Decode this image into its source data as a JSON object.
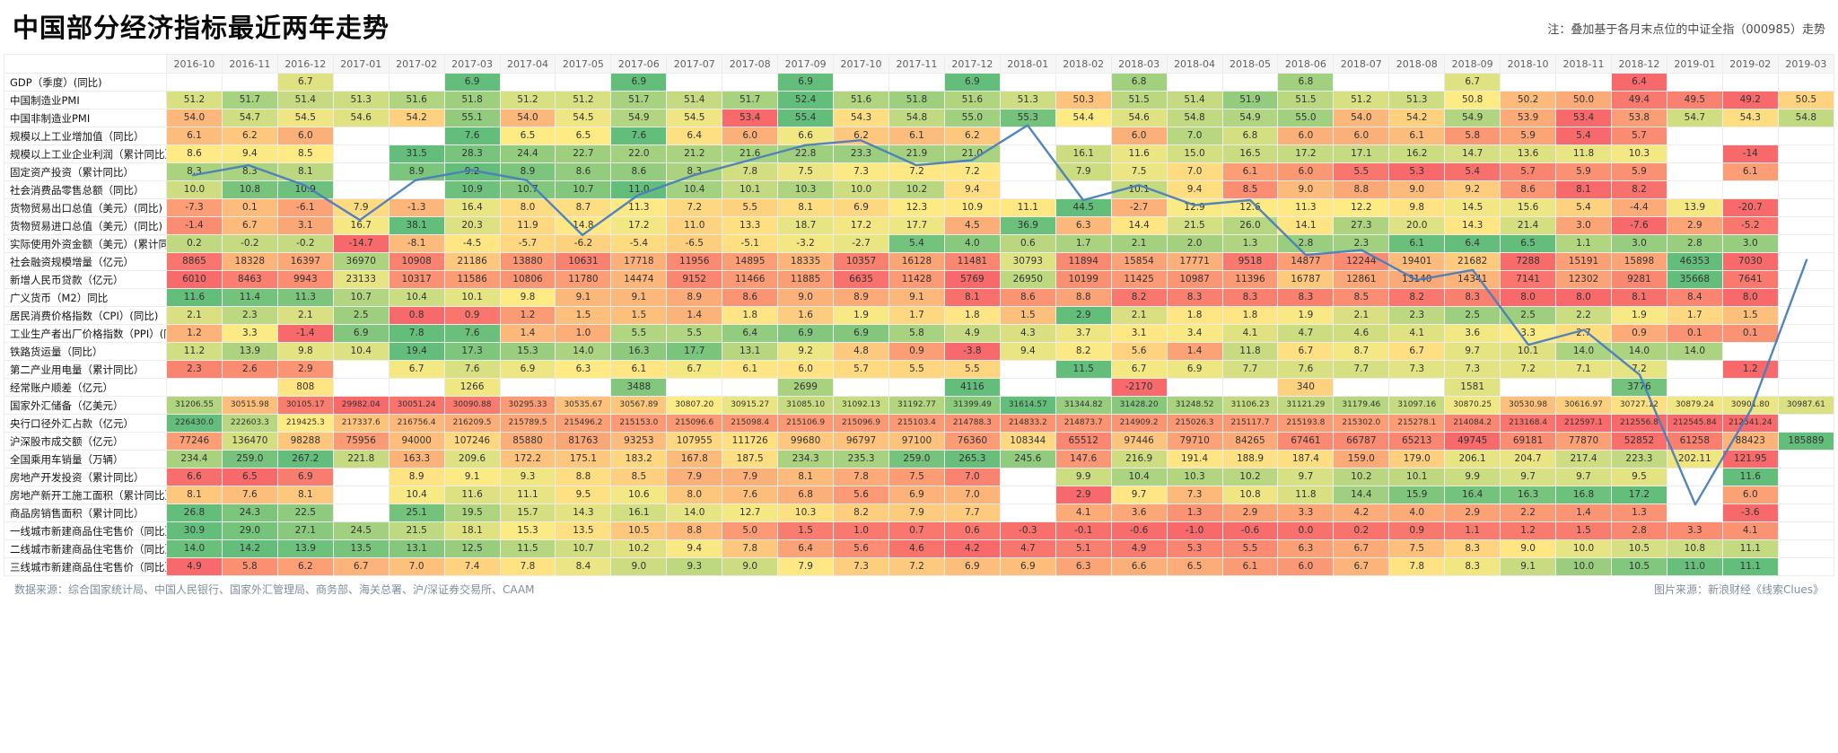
{
  "title": "中国部分经济指标最近两年走势",
  "note": "注：叠加基于各月末点位的中证全指（000985）走势",
  "footer": {
    "source_left": "数据来源：综合国家统计局、中国人民银行、国家外汇管理局、商务部、海关总署、沪/深证券交易所、CAAM",
    "source_right": "图片来源：新浪财经《线索Clues》"
  },
  "colors": {
    "scale_low": "#f8696b",
    "scale_mid": "#ffeb84",
    "scale_high": "#63be7b",
    "index_line": "#4a7ebb",
    "empty_cell": "#ffffff"
  },
  "chart_data": {
    "type": "heatmap",
    "title": "中国部分经济指标最近两年走势",
    "legend_note": "叠加基于各月末点位的中证全指（000985）走势",
    "columns": [
      "2016-10",
      "2016-11",
      "2016-12",
      "2017-01",
      "2017-02",
      "2017-03",
      "2017-04",
      "2017-05",
      "2017-06",
      "2017-07",
      "2017-08",
      "2017-09",
      "2017-10",
      "2017-11",
      "2017-12",
      "2018-01",
      "2018-02",
      "2018-03",
      "2018-04",
      "2018-05",
      "2018-06",
      "2018-07",
      "2018-08",
      "2018-09",
      "2018-10",
      "2018-11",
      "2018-12",
      "2019-01",
      "2019-02",
      "2019-03"
    ],
    "rows": [
      {
        "label": "GDP（季度）(同比)",
        "values": [
          null,
          null,
          "6.7",
          null,
          null,
          "6.9",
          null,
          null,
          "6.9",
          null,
          null,
          "6.9",
          null,
          null,
          "6.9",
          null,
          null,
          "6.8",
          null,
          null,
          "6.8",
          null,
          null,
          "6.7",
          null,
          null,
          "6.4",
          null,
          null,
          null
        ]
      },
      {
        "label": "中国制造业PMI",
        "values": [
          "51.2",
          "51.7",
          "51.4",
          "51.3",
          "51.6",
          "51.8",
          "51.2",
          "51.2",
          "51.7",
          "51.4",
          "51.7",
          "52.4",
          "51.6",
          "51.8",
          "51.6",
          "51.3",
          "50.3",
          "51.5",
          "51.4",
          "51.9",
          "51.5",
          "51.2",
          "51.3",
          "50.8",
          "50.2",
          "50.0",
          "49.4",
          "49.5",
          "49.2",
          "50.5"
        ]
      },
      {
        "label": "中国非制造业PMI",
        "values": [
          "54.0",
          "54.7",
          "54.5",
          "54.6",
          "54.2",
          "55.1",
          "54.0",
          "54.5",
          "54.9",
          "54.5",
          "53.4",
          "55.4",
          "54.3",
          "54.8",
          "55.0",
          "55.3",
          "54.4",
          "54.6",
          "54.8",
          "54.9",
          "55.0",
          "54.0",
          "54.2",
          "54.9",
          "53.9",
          "53.4",
          "53.8",
          "54.7",
          "54.3",
          "54.8"
        ]
      },
      {
        "label": "规模以上工业增加值（同比）",
        "values": [
          "6.1",
          "6.2",
          "6.0",
          null,
          null,
          "7.6",
          "6.5",
          "6.5",
          "7.6",
          "6.4",
          "6.0",
          "6.6",
          "6.2",
          "6.1",
          "6.2",
          null,
          null,
          "6.0",
          "7.0",
          "6.8",
          "6.0",
          "6.0",
          "6.1",
          "5.8",
          "5.9",
          "5.4",
          "5.7",
          null,
          null,
          null
        ]
      },
      {
        "label": "规模以上工业企业利润（累计同比）",
        "values": [
          "8.6",
          "9.4",
          "8.5",
          null,
          "31.5",
          "28.3",
          "24.4",
          "22.7",
          "22.0",
          "21.2",
          "21.6",
          "22.8",
          "23.3",
          "21.9",
          "21.0",
          null,
          "16.1",
          "11.6",
          "15.0",
          "16.5",
          "17.2",
          "17.1",
          "16.2",
          "14.7",
          "13.6",
          "11.8",
          "10.3",
          null,
          "-14",
          null
        ]
      },
      {
        "label": "固定资产投资（累计同比）",
        "values": [
          "8.3",
          "8.3",
          "8.1",
          null,
          "8.9",
          "9.2",
          "8.9",
          "8.6",
          "8.6",
          "8.3",
          "7.8",
          "7.5",
          "7.3",
          "7.2",
          "7.2",
          null,
          "7.9",
          "7.5",
          "7.0",
          "6.1",
          "6.0",
          "5.5",
          "5.3",
          "5.4",
          "5.7",
          "5.9",
          "5.9",
          null,
          "6.1",
          null
        ]
      },
      {
        "label": "社会消费品零售总额（同比）",
        "values": [
          "10.0",
          "10.8",
          "10.9",
          null,
          null,
          "10.9",
          "10.7",
          "10.7",
          "11.0",
          "10.4",
          "10.1",
          "10.3",
          "10.0",
          "10.2",
          "9.4",
          null,
          null,
          "10.1",
          "9.4",
          "8.5",
          "9.0",
          "8.8",
          "9.0",
          "9.2",
          "8.6",
          "8.1",
          "8.2",
          null,
          null,
          null
        ]
      },
      {
        "label": "货物贸易出口总值（美元）(同比)",
        "values": [
          "-7.3",
          "0.1",
          "-6.1",
          "7.9",
          "-1.3",
          "16.4",
          "8.0",
          "8.7",
          "11.3",
          "7.2",
          "5.5",
          "8.1",
          "6.9",
          "12.3",
          "10.9",
          "11.1",
          "44.5",
          "-2.7",
          "12.9",
          "12.6",
          "11.3",
          "12.2",
          "9.8",
          "14.5",
          "15.6",
          "5.4",
          "-4.4",
          "13.9",
          "-20.7",
          null
        ]
      },
      {
        "label": "货物贸易进口总值（美元）(同比)",
        "values": [
          "-1.4",
          "6.7",
          "3.1",
          "16.7",
          "38.1",
          "20.3",
          "11.9",
          "14.8",
          "17.2",
          "11.0",
          "13.3",
          "18.7",
          "17.2",
          "17.7",
          "4.5",
          "36.9",
          "6.3",
          "14.4",
          "21.5",
          "26.0",
          "14.1",
          "27.3",
          "20.0",
          "14.3",
          "21.4",
          "3.0",
          "-7.6",
          "2.9",
          "-5.2",
          null
        ]
      },
      {
        "label": "实际使用外资金额（美元）(累计同比)",
        "values": [
          "0.2",
          "-0.2",
          "-0.2",
          "-14.7",
          "-8.1",
          "-4.5",
          "-5.7",
          "-6.2",
          "-5.4",
          "-6.5",
          "-5.1",
          "-3.2",
          "-2.7",
          "5.4",
          "4.0",
          "0.6",
          "1.7",
          "2.1",
          "2.0",
          "1.3",
          "2.8",
          "2.3",
          "6.1",
          "6.4",
          "6.5",
          "1.1",
          "3.0",
          "2.8",
          "3.0",
          null
        ]
      },
      {
        "label": "社会融资规模增量（亿元）",
        "values": [
          "8865",
          "18328",
          "16397",
          "36970",
          "10908",
          "21186",
          "13880",
          "10631",
          "17718",
          "11956",
          "14895",
          "18335",
          "10357",
          "16128",
          "11481",
          "30793",
          "11894",
          "15854",
          "17771",
          "9518",
          "14877",
          "12244",
          "19401",
          "21682",
          "7288",
          "15191",
          "15898",
          "46353",
          "7030",
          null
        ]
      },
      {
        "label": "新增人民币贷款（亿元）",
        "values": [
          "6010",
          "8463",
          "9943",
          "23133",
          "10317",
          "11586",
          "10806",
          "11780",
          "14474",
          "9152",
          "11466",
          "11885",
          "6635",
          "11428",
          "5769",
          "26950",
          "10199",
          "11425",
          "10987",
          "11396",
          "16787",
          "12861",
          "13140",
          "14341",
          "7141",
          "12302",
          "9281",
          "35668",
          "7641",
          null
        ]
      },
      {
        "label": "广义货币（M2）同比",
        "values": [
          "11.6",
          "11.4",
          "11.3",
          "10.7",
          "10.4",
          "10.1",
          "9.8",
          "9.1",
          "9.1",
          "8.9",
          "8.6",
          "9.0",
          "8.9",
          "9.1",
          "8.1",
          "8.6",
          "8.8",
          "8.2",
          "8.3",
          "8.3",
          "8.3",
          "8.5",
          "8.2",
          "8.3",
          "8.0",
          "8.0",
          "8.1",
          "8.4",
          "8.0",
          null
        ]
      },
      {
        "label": "居民消费价格指数（CPI）(同比)",
        "values": [
          "2.1",
          "2.3",
          "2.1",
          "2.5",
          "0.8",
          "0.9",
          "1.2",
          "1.5",
          "1.5",
          "1.4",
          "1.8",
          "1.6",
          "1.9",
          "1.7",
          "1.8",
          "1.5",
          "2.9",
          "2.1",
          "1.8",
          "1.8",
          "1.9",
          "2.1",
          "2.3",
          "2.5",
          "2.5",
          "2.2",
          "1.9",
          "1.7",
          "1.5",
          null
        ]
      },
      {
        "label": "工业生产者出厂价格指数（PPI）(同比)",
        "values": [
          "1.2",
          "3.3",
          "-1.4",
          "6.9",
          "7.8",
          "7.6",
          "1.4",
          "1.0",
          "5.5",
          "5.5",
          "6.4",
          "6.9",
          "6.9",
          "5.8",
          "4.9",
          "4.3",
          "3.7",
          "3.1",
          "3.4",
          "4.1",
          "4.7",
          "4.6",
          "4.1",
          "3.6",
          "3.3",
          "2.7",
          "0.9",
          "0.1",
          "0.1",
          null
        ]
      },
      {
        "label": "铁路货运量（同比）",
        "values": [
          "11.2",
          "13.9",
          "9.8",
          "10.4",
          "19.4",
          "17.3",
          "15.3",
          "14.0",
          "16.3",
          "17.7",
          "13.1",
          "9.2",
          "4.8",
          "0.9",
          "-3.8",
          "9.4",
          "8.2",
          "5.6",
          "1.4",
          "11.8",
          "6.7",
          "8.7",
          "6.7",
          "9.7",
          "10.1",
          "14.0",
          "14.0",
          "14.0",
          null,
          null
        ]
      },
      {
        "label": "第二产业用电量（累计同比）",
        "values": [
          "2.3",
          "2.6",
          "2.9",
          null,
          "6.7",
          "7.6",
          "6.9",
          "6.3",
          "6.1",
          "6.7",
          "6.1",
          "6.0",
          "5.7",
          "5.5",
          "5.5",
          null,
          "11.5",
          "6.7",
          "6.9",
          "7.7",
          "7.6",
          "7.7",
          "7.3",
          "7.3",
          "7.2",
          "7.1",
          "7.2",
          null,
          "1.2",
          null
        ]
      },
      {
        "label": "经常账户顺差（亿元）",
        "values": [
          null,
          null,
          "808",
          null,
          null,
          "1266",
          null,
          null,
          "3488",
          null,
          null,
          "2699",
          null,
          null,
          "4116",
          null,
          null,
          "-2170",
          null,
          null,
          "340",
          null,
          null,
          "1581",
          null,
          null,
          "3776",
          null,
          null,
          null
        ]
      },
      {
        "label": "国家外汇储备（亿美元）",
        "values": [
          "31206.55",
          "30515.98",
          "30105.17",
          "29982.04",
          "30051.24",
          "30090.88",
          "30295.33",
          "30535.67",
          "30567.89",
          "30807.20",
          "30915.27",
          "31085.10",
          "31092.13",
          "31192.77",
          "31399.49",
          "31614.57",
          "31344.82",
          "31428.20",
          "31248.52",
          "31106.23",
          "31121.29",
          "31179.46",
          "31097.16",
          "30870.25",
          "30530.98",
          "30616.97",
          "30727.12",
          "30879.24",
          "30901.80",
          "30987.61"
        ]
      },
      {
        "label": "央行口径外汇占款（亿元）",
        "values": [
          "226430.0",
          "222603.3",
          "219425.3",
          "217337.6",
          "216756.4",
          "216209.5",
          "215789.5",
          "215496.2",
          "215153.0",
          "215096.6",
          "215098.4",
          "215106.9",
          "215096.9",
          "215103.4",
          "214788.3",
          "214833.2",
          "214873.7",
          "214909.2",
          "215026.3",
          "215117.7",
          "215193.8",
          "215302.0",
          "215278.1",
          "214084.2",
          "213168.4",
          "212597.1",
          "212556.8",
          "212545.84",
          "212541.24",
          null
        ]
      },
      {
        "label": "沪深股市成交额（亿元）",
        "values": [
          "77246",
          "136470",
          "98288",
          "75956",
          "94000",
          "107246",
          "85880",
          "81763",
          "93253",
          "107955",
          "111726",
          "99680",
          "96797",
          "97100",
          "76360",
          "108344",
          "65512",
          "97446",
          "79710",
          "84265",
          "67461",
          "66787",
          "65213",
          "49745",
          "69181",
          "77870",
          "52852",
          "61258",
          "88423",
          "185889"
        ]
      },
      {
        "label": "全国乘用车销量（万辆）",
        "values": [
          "234.4",
          "259.0",
          "267.2",
          "221.8",
          "163.3",
          "209.6",
          "172.2",
          "175.1",
          "183.2",
          "167.8",
          "187.5",
          "234.3",
          "235.3",
          "259.0",
          "265.3",
          "245.6",
          "147.6",
          "216.9",
          "191.4",
          "188.9",
          "187.4",
          "159.0",
          "179.0",
          "206.1",
          "204.7",
          "217.4",
          "223.3",
          "202.11",
          "121.95",
          null
        ]
      },
      {
        "label": "房地产开发投资（累计同比）",
        "values": [
          "6.6",
          "6.5",
          "6.9",
          null,
          "8.9",
          "9.1",
          "9.3",
          "8.8",
          "8.5",
          "7.9",
          "7.9",
          "8.1",
          "7.8",
          "7.5",
          "7.0",
          null,
          "9.9",
          "10.4",
          "10.3",
          "10.2",
          "9.7",
          "10.2",
          "10.1",
          "9.9",
          "9.7",
          "9.7",
          "9.5",
          null,
          "11.6",
          null
        ]
      },
      {
        "label": "房地产新开工施工面积（累计同比）",
        "values": [
          "8.1",
          "7.6",
          "8.1",
          null,
          "10.4",
          "11.6",
          "11.1",
          "9.5",
          "10.6",
          "8.0",
          "7.6",
          "6.8",
          "5.6",
          "6.9",
          "7.0",
          null,
          "2.9",
          "9.7",
          "7.3",
          "10.8",
          "11.8",
          "14.4",
          "15.9",
          "16.4",
          "16.3",
          "16.8",
          "17.2",
          null,
          "6.0",
          null
        ]
      },
      {
        "label": "商品房销售面积（累计同比）",
        "values": [
          "26.8",
          "24.3",
          "22.5",
          null,
          "25.1",
          "19.5",
          "15.7",
          "14.3",
          "16.1",
          "14.0",
          "12.7",
          "10.3",
          "8.2",
          "7.9",
          "7.7",
          null,
          "4.1",
          "3.6",
          "1.3",
          "2.9",
          "3.3",
          "4.2",
          "4.0",
          "2.9",
          "2.2",
          "1.4",
          "1.3",
          null,
          "-3.6",
          null
        ]
      },
      {
        "label": "一线城市新建商品住宅售价（同比）",
        "values": [
          "30.9",
          "29.0",
          "27.1",
          "24.5",
          "21.5",
          "18.1",
          "15.3",
          "13.5",
          "10.5",
          "8.8",
          "5.0",
          "1.5",
          "1.0",
          "0.7",
          "0.6",
          "-0.3",
          "-0.1",
          "-0.6",
          "-1.0",
          "-0.6",
          "0.0",
          "0.2",
          "0.9",
          "1.1",
          "1.2",
          "1.5",
          "2.8",
          "3.3",
          "4.1",
          null
        ]
      },
      {
        "label": "二线城市新建商品住宅售价（同比）",
        "values": [
          "14.0",
          "14.2",
          "13.9",
          "13.5",
          "13.1",
          "12.5",
          "11.5",
          "10.7",
          "10.2",
          "9.4",
          "7.8",
          "6.4",
          "5.6",
          "4.6",
          "4.2",
          "4.7",
          "5.1",
          "4.9",
          "5.3",
          "5.5",
          "6.3",
          "6.7",
          "7.5",
          "8.3",
          "9.0",
          "10.0",
          "10.5",
          "10.8",
          "11.1",
          null
        ]
      },
      {
        "label": "三线城市新建商品住宅售价（同比）",
        "values": [
          "4.9",
          "5.8",
          "6.2",
          "6.7",
          "7.0",
          "7.4",
          "7.8",
          "8.4",
          "9.0",
          "9.3",
          "9.0",
          "7.9",
          "7.3",
          "7.2",
          "6.9",
          "6.9",
          "6.3",
          "6.6",
          "6.5",
          "6.1",
          "6.0",
          "6.7",
          "7.8",
          "8.3",
          "9.1",
          "10.0",
          "10.5",
          "11.0",
          "11.1",
          null
        ]
      }
    ],
    "overlay_line": {
      "name": "中证全指（000985）月末点位走势（归一化）",
      "y_pct": [
        0.2,
        0.18,
        0.22,
        0.29,
        0.21,
        0.19,
        0.21,
        0.32,
        0.24,
        0.2,
        0.17,
        0.14,
        0.13,
        0.18,
        0.17,
        0.1,
        0.25,
        0.22,
        0.26,
        0.25,
        0.36,
        0.35,
        0.41,
        0.39,
        0.54,
        0.51,
        0.6,
        0.86,
        0.67,
        0.37
      ]
    },
    "color_scale": {
      "low_color": "#f8696b",
      "mid_color": "#ffeb84",
      "high_color": "#63be7b",
      "normalization": "per-row min→red, max→green"
    }
  }
}
